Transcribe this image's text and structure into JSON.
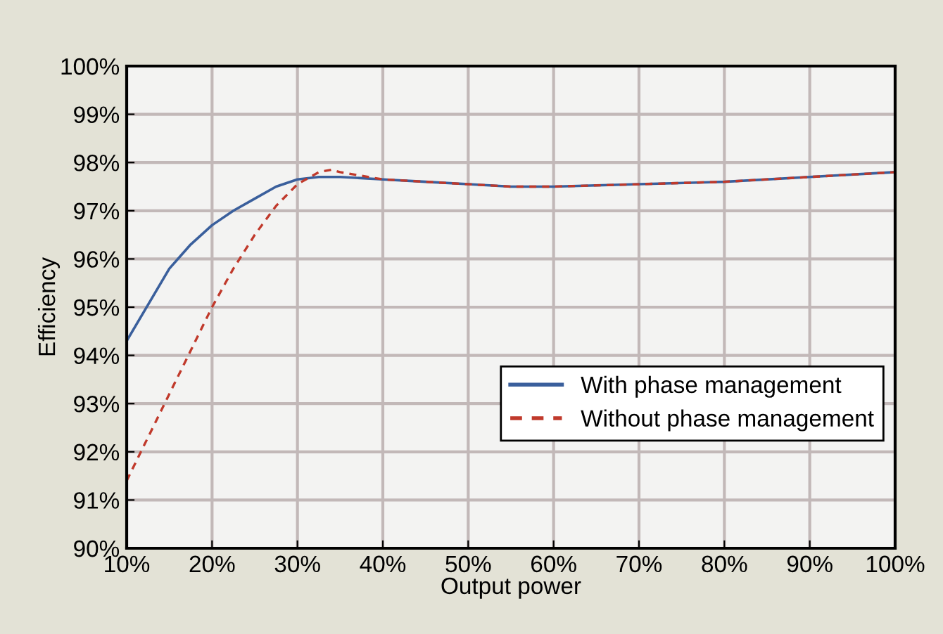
{
  "chart_data": {
    "type": "line",
    "xlabel": "Output power",
    "ylabel": "Efficiency",
    "xlim": [
      10,
      100
    ],
    "ylim": [
      90,
      100
    ],
    "xticks": [
      {
        "value": 10,
        "label": "10%"
      },
      {
        "value": 20,
        "label": "20%"
      },
      {
        "value": 30,
        "label": "30%"
      },
      {
        "value": 40,
        "label": "40%"
      },
      {
        "value": 50,
        "label": "50%"
      },
      {
        "value": 60,
        "label": "60%"
      },
      {
        "value": 70,
        "label": "70%"
      },
      {
        "value": 80,
        "label": "80%"
      },
      {
        "value": 90,
        "label": "90%"
      },
      {
        "value": 100,
        "label": "100%"
      }
    ],
    "yticks": [
      {
        "value": 90,
        "label": "90%"
      },
      {
        "value": 91,
        "label": "91%"
      },
      {
        "value": 92,
        "label": "92%"
      },
      {
        "value": 93,
        "label": "93%"
      },
      {
        "value": 94,
        "label": "94%"
      },
      {
        "value": 95,
        "label": "95%"
      },
      {
        "value": 96,
        "label": "96%"
      },
      {
        "value": 97,
        "label": "97%"
      },
      {
        "value": 98,
        "label": "98%"
      },
      {
        "value": 99,
        "label": "99%"
      },
      {
        "value": 100,
        "label": "100%"
      }
    ],
    "grid": true,
    "legend": "right",
    "marker": "none",
    "series": [
      {
        "name": "With phase management",
        "color": "#3a5f9c",
        "line_style": "solid",
        "x": [
          10,
          12.5,
          15,
          17.5,
          20,
          22.5,
          25,
          27.5,
          30,
          32.5,
          35,
          40,
          45,
          50,
          55,
          60,
          70,
          80,
          90,
          100
        ],
        "values": [
          94.3,
          95.05,
          95.8,
          96.3,
          96.7,
          97.0,
          97.25,
          97.5,
          97.65,
          97.7,
          97.7,
          97.65,
          97.6,
          97.55,
          97.5,
          97.5,
          97.55,
          97.6,
          97.7,
          97.8
        ]
      },
      {
        "name": "Without phase management",
        "color": "#c0392b",
        "line_style": "dashed",
        "x": [
          10,
          12.5,
          15,
          17.5,
          20,
          22.5,
          25,
          27.5,
          30,
          32.5,
          34,
          35,
          40,
          45,
          50,
          55,
          60,
          70,
          80,
          90,
          100
        ],
        "values": [
          91.4,
          92.3,
          93.2,
          94.1,
          95.0,
          95.8,
          96.5,
          97.1,
          97.55,
          97.8,
          97.85,
          97.8,
          97.65,
          97.6,
          97.55,
          97.5,
          97.5,
          97.55,
          97.6,
          97.7,
          97.8
        ]
      }
    ]
  }
}
